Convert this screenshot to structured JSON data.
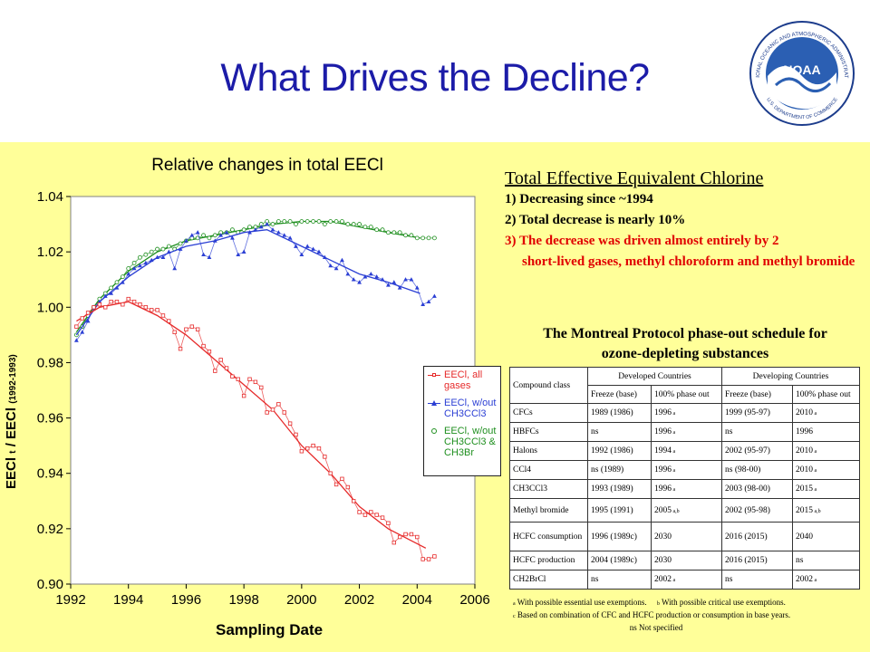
{
  "slide": {
    "title": "What Drives the Decline?",
    "colors": {
      "title": "#1c1ca8",
      "background": "#ffff99",
      "emphasis": "#e00000"
    }
  },
  "logo": {
    "icon": "noaa-logo-icon",
    "name": "NOAA",
    "ring_text": "NATIONAL OCEANIC AND ATMOSPHERIC ADMINISTRATION",
    "bottom_text": "U.S. DEPARTMENT OF COMMERCE"
  },
  "chart_data": {
    "type": "line",
    "title": "Relative changes in total EECl",
    "xlabel": "Sampling Date",
    "ylabel_main": "EECl",
    "ylabel_sub_t": "t",
    "ylabel_div": "/ EECl",
    "ylabel_sub_ref": "(1992-1993)",
    "xlim": [
      1992,
      2006
    ],
    "ylim": [
      0.9,
      1.04
    ],
    "x_ticks": [
      "1992",
      "1994",
      "1996",
      "1998",
      "2000",
      "2002",
      "2004",
      "2006"
    ],
    "y_ticks": [
      "0.90",
      "0.92",
      "0.94",
      "0.96",
      "0.98",
      "1.00",
      "1.02",
      "1.04"
    ],
    "legend_position": "right, inside",
    "series": [
      {
        "name": "EECl, all gases",
        "color": "#e62a2a",
        "marker": "square",
        "points": [
          [
            1992.2,
            0.993
          ],
          [
            1992.4,
            0.996
          ],
          [
            1992.6,
            0.998
          ],
          [
            1992.8,
            1.0
          ],
          [
            1993.0,
            1.001
          ],
          [
            1993.2,
            1.0
          ],
          [
            1993.4,
            1.002
          ],
          [
            1993.6,
            1.002
          ],
          [
            1993.8,
            1.001
          ],
          [
            1994.0,
            1.003
          ],
          [
            1994.2,
            1.002
          ],
          [
            1994.4,
            1.001
          ],
          [
            1994.6,
            1.0
          ],
          [
            1994.8,
            0.999
          ],
          [
            1995.0,
            0.999
          ],
          [
            1995.2,
            0.997
          ],
          [
            1995.4,
            0.995
          ],
          [
            1995.6,
            0.991
          ],
          [
            1995.8,
            0.985
          ],
          [
            1996.0,
            0.992
          ],
          [
            1996.2,
            0.993
          ],
          [
            1996.4,
            0.992
          ],
          [
            1996.6,
            0.986
          ],
          [
            1996.8,
            0.984
          ],
          [
            1997.0,
            0.977
          ],
          [
            1997.2,
            0.981
          ],
          [
            1997.4,
            0.978
          ],
          [
            1997.6,
            0.975
          ],
          [
            1997.8,
            0.974
          ],
          [
            1998.0,
            0.968
          ],
          [
            1998.2,
            0.974
          ],
          [
            1998.4,
            0.973
          ],
          [
            1998.6,
            0.971
          ],
          [
            1998.8,
            0.962
          ],
          [
            1999.0,
            0.963
          ],
          [
            1999.2,
            0.965
          ],
          [
            1999.4,
            0.962
          ],
          [
            1999.6,
            0.958
          ],
          [
            1999.8,
            0.954
          ],
          [
            2000.0,
            0.948
          ],
          [
            2000.2,
            0.949
          ],
          [
            2000.4,
            0.95
          ],
          [
            2000.6,
            0.949
          ],
          [
            2000.8,
            0.946
          ],
          [
            2001.0,
            0.94
          ],
          [
            2001.2,
            0.936
          ],
          [
            2001.4,
            0.938
          ],
          [
            2001.6,
            0.935
          ],
          [
            2001.8,
            0.93
          ],
          [
            2002.0,
            0.926
          ],
          [
            2002.2,
            0.925
          ],
          [
            2002.4,
            0.926
          ],
          [
            2002.6,
            0.925
          ],
          [
            2002.8,
            0.924
          ],
          [
            2003.0,
            0.922
          ],
          [
            2003.2,
            0.915
          ],
          [
            2003.4,
            0.917
          ],
          [
            2003.6,
            0.918
          ],
          [
            2003.8,
            0.918
          ],
          [
            2004.0,
            0.917
          ],
          [
            2004.2,
            0.909
          ],
          [
            2004.4,
            0.909
          ],
          [
            2004.6,
            0.91
          ]
        ],
        "trend": [
          [
            1992.2,
            0.995
          ],
          [
            1993.0,
            1.0
          ],
          [
            1994.0,
            1.002
          ],
          [
            1995.0,
            0.997
          ],
          [
            1996.0,
            0.99
          ],
          [
            1997.0,
            0.981
          ],
          [
            1998.0,
            0.972
          ],
          [
            1999.0,
            0.963
          ],
          [
            2000.0,
            0.95
          ],
          [
            2001.0,
            0.94
          ],
          [
            2002.0,
            0.928
          ],
          [
            2003.0,
            0.92
          ],
          [
            2004.3,
            0.913
          ]
        ]
      },
      {
        "name": "EECl, w/out CH3CCl3",
        "color": "#2b3fd4",
        "marker": "triangle",
        "points": [
          [
            1992.2,
            0.988
          ],
          [
            1992.4,
            0.991
          ],
          [
            1992.6,
            0.995
          ],
          [
            1992.8,
            1.0
          ],
          [
            1993.0,
            1.002
          ],
          [
            1993.2,
            1.004
          ],
          [
            1993.4,
            1.005
          ],
          [
            1993.6,
            1.007
          ],
          [
            1993.8,
            1.009
          ],
          [
            1994.0,
            1.012
          ],
          [
            1994.2,
            1.014
          ],
          [
            1994.4,
            1.015
          ],
          [
            1994.6,
            1.016
          ],
          [
            1994.8,
            1.017
          ],
          [
            1995.0,
            1.018
          ],
          [
            1995.2,
            1.018
          ],
          [
            1995.4,
            1.02
          ],
          [
            1995.6,
            1.014
          ],
          [
            1995.8,
            1.021
          ],
          [
            1996.0,
            1.024
          ],
          [
            1996.2,
            1.026
          ],
          [
            1996.4,
            1.027
          ],
          [
            1996.6,
            1.019
          ],
          [
            1996.8,
            1.018
          ],
          [
            1997.0,
            1.024
          ],
          [
            1997.2,
            1.026
          ],
          [
            1997.4,
            1.027
          ],
          [
            1997.6,
            1.025
          ],
          [
            1997.8,
            1.019
          ],
          [
            1998.0,
            1.02
          ],
          [
            1998.2,
            1.027
          ],
          [
            1998.4,
            1.028
          ],
          [
            1998.6,
            1.029
          ],
          [
            1998.8,
            1.03
          ],
          [
            1999.0,
            1.028
          ],
          [
            1999.2,
            1.027
          ],
          [
            1999.4,
            1.026
          ],
          [
            1999.6,
            1.025
          ],
          [
            1999.8,
            1.022
          ],
          [
            2000.0,
            1.019
          ],
          [
            2000.2,
            1.022
          ],
          [
            2000.4,
            1.021
          ],
          [
            2000.6,
            1.02
          ],
          [
            2000.8,
            1.018
          ],
          [
            2001.0,
            1.015
          ],
          [
            2001.2,
            1.014
          ],
          [
            2001.4,
            1.017
          ],
          [
            2001.6,
            1.012
          ],
          [
            2001.8,
            1.01
          ],
          [
            2002.0,
            1.009
          ],
          [
            2002.2,
            1.011
          ],
          [
            2002.4,
            1.012
          ],
          [
            2002.6,
            1.011
          ],
          [
            2002.8,
            1.01
          ],
          [
            2003.0,
            1.008
          ],
          [
            2003.2,
            1.009
          ],
          [
            2003.4,
            1.007
          ],
          [
            2003.6,
            1.01
          ],
          [
            2003.8,
            1.01
          ],
          [
            2004.0,
            1.007
          ],
          [
            2004.2,
            1.001
          ],
          [
            2004.4,
            1.002
          ],
          [
            2004.6,
            1.004
          ]
        ],
        "trend": [
          [
            1992.2,
            0.99
          ],
          [
            1993.0,
            1.002
          ],
          [
            1994.0,
            1.011
          ],
          [
            1995.0,
            1.018
          ],
          [
            1996.0,
            1.022
          ],
          [
            1997.0,
            1.024
          ],
          [
            1998.0,
            1.027
          ],
          [
            1998.8,
            1.028
          ],
          [
            2000.0,
            1.022
          ],
          [
            2001.0,
            1.017
          ],
          [
            2002.0,
            1.012
          ],
          [
            2003.0,
            1.009
          ],
          [
            2004.1,
            1.005
          ]
        ]
      },
      {
        "name": "EECl, w/out CH3CCl3 & CH3Br",
        "color": "#1f8f1f",
        "marker": "circle",
        "points": [
          [
            1992.2,
            0.99
          ],
          [
            1992.4,
            0.993
          ],
          [
            1992.6,
            0.997
          ],
          [
            1992.8,
            1.0
          ],
          [
            1993.0,
            1.003
          ],
          [
            1993.2,
            1.005
          ],
          [
            1993.4,
            1.007
          ],
          [
            1993.6,
            1.009
          ],
          [
            1993.8,
            1.011
          ],
          [
            1994.0,
            1.014
          ],
          [
            1994.2,
            1.016
          ],
          [
            1994.4,
            1.018
          ],
          [
            1994.6,
            1.019
          ],
          [
            1994.8,
            1.02
          ],
          [
            1995.0,
            1.021
          ],
          [
            1995.2,
            1.021
          ],
          [
            1995.4,
            1.022
          ],
          [
            1995.6,
            1.021
          ],
          [
            1995.8,
            1.023
          ],
          [
            1996.0,
            1.024
          ],
          [
            1996.2,
            1.025
          ],
          [
            1996.4,
            1.025
          ],
          [
            1996.6,
            1.026
          ],
          [
            1996.8,
            1.025
          ],
          [
            1997.0,
            1.026
          ],
          [
            1997.2,
            1.027
          ],
          [
            1997.4,
            1.027
          ],
          [
            1997.6,
            1.028
          ],
          [
            1997.8,
            1.027
          ],
          [
            1998.0,
            1.028
          ],
          [
            1998.2,
            1.029
          ],
          [
            1998.4,
            1.029
          ],
          [
            1998.6,
            1.03
          ],
          [
            1998.8,
            1.031
          ],
          [
            1999.0,
            1.03
          ],
          [
            1999.2,
            1.031
          ],
          [
            1999.4,
            1.031
          ],
          [
            1999.6,
            1.031
          ],
          [
            1999.8,
            1.03
          ],
          [
            2000.0,
            1.031
          ],
          [
            2000.2,
            1.031
          ],
          [
            2000.4,
            1.031
          ],
          [
            2000.6,
            1.031
          ],
          [
            2000.8,
            1.03
          ],
          [
            2001.0,
            1.031
          ],
          [
            2001.2,
            1.031
          ],
          [
            2001.4,
            1.031
          ],
          [
            2001.6,
            1.03
          ],
          [
            2001.8,
            1.03
          ],
          [
            2002.0,
            1.03
          ],
          [
            2002.2,
            1.029
          ],
          [
            2002.4,
            1.029
          ],
          [
            2002.6,
            1.028
          ],
          [
            2002.8,
            1.028
          ],
          [
            2003.0,
            1.027
          ],
          [
            2003.2,
            1.027
          ],
          [
            2003.4,
            1.027
          ],
          [
            2003.6,
            1.026
          ],
          [
            2003.8,
            1.026
          ],
          [
            2004.0,
            1.025
          ],
          [
            2004.2,
            1.025
          ],
          [
            2004.4,
            1.025
          ],
          [
            2004.6,
            1.025
          ]
        ],
        "trend": [
          [
            1992.2,
            0.991
          ],
          [
            1993.0,
            1.003
          ],
          [
            1994.0,
            1.013
          ],
          [
            1995.0,
            1.02
          ],
          [
            1996.0,
            1.024
          ],
          [
            1997.0,
            1.026
          ],
          [
            1998.0,
            1.028
          ],
          [
            1999.0,
            1.03
          ],
          [
            2000.0,
            1.031
          ],
          [
            2001.0,
            1.031
          ],
          [
            2002.0,
            1.029
          ],
          [
            2003.0,
            1.027
          ],
          [
            2004.1,
            1.025
          ]
        ]
      }
    ]
  },
  "summary": {
    "heading": "Total Effective Equivalent Chlorine",
    "points": [
      {
        "text": "1) Decreasing since ~1994",
        "cont": ""
      },
      {
        "text": "2) Total decrease is nearly 10%",
        "cont": ""
      },
      {
        "text": "3) The decrease was driven almost entirely by 2",
        "cont": "short-lived gases, methyl chloroform and methyl bromide"
      }
    ]
  },
  "table": {
    "title_line1": "The Montreal Protocol phase-out schedule for",
    "title_line2": "ozone-depleting substances",
    "compound_header": "Compound class",
    "group_headers": [
      "Developed Countries",
      "Developing Countries"
    ],
    "sub_headers": [
      "Freeze (base)",
      "100% phase out",
      "Freeze (base)",
      "100% phase out"
    ],
    "rows": [
      {
        "compound": "CFCs",
        "cells": [
          "1989 (1986)",
          "1996",
          "1999 (95-97)",
          "2010"
        ],
        "notes": [
          "",
          "a",
          "",
          "a"
        ]
      },
      {
        "compound": "HBFCs",
        "cells": [
          "ns",
          "1996",
          "ns",
          "1996"
        ],
        "notes": [
          "",
          "a",
          "",
          ""
        ]
      },
      {
        "compound": "Halons",
        "cells": [
          "1992 (1986)",
          "1994",
          "2002 (95-97)",
          "2010"
        ],
        "notes": [
          "",
          "a",
          "",
          "a"
        ]
      },
      {
        "compound": "CCl4",
        "cells": [
          "ns (1989)",
          "1996",
          "ns (98-00)",
          "2010"
        ],
        "notes": [
          "",
          "a",
          "",
          "a"
        ]
      },
      {
        "compound": "CH3CCl3",
        "cells": [
          "1993 (1989)",
          "1996",
          "2003 (98-00)",
          "2015"
        ],
        "notes": [
          "",
          "a",
          "",
          "a"
        ]
      },
      {
        "compound": "Methyl bromide",
        "cells": [
          "1995 (1991)",
          "2005",
          "2002 (95-98)",
          "2015"
        ],
        "notes": [
          "",
          "a,b",
          "",
          "a,b"
        ]
      },
      {
        "compound": "HCFC consumption",
        "cells": [
          "1996 (1989c)",
          "2030",
          "2016 (2015)",
          "2040"
        ],
        "notes": [
          "",
          "",
          "",
          ""
        ]
      },
      {
        "compound": "HCFC production",
        "cells": [
          "2004 (1989c)",
          "2030",
          "2016 (2015)",
          "ns"
        ],
        "notes": [
          "",
          "",
          "",
          ""
        ]
      },
      {
        "compound": "CH2BrCl",
        "cells": [
          "ns",
          "2002",
          "ns",
          "2002"
        ],
        "notes": [
          "",
          "a",
          "",
          "a"
        ]
      }
    ],
    "footnotes": {
      "a_mark": "a",
      "a": "With possible essential use exemptions.",
      "b_mark": "b",
      "b": "With possible critical use exemptions.",
      "c_mark": "c",
      "c": "Based on combination of CFC and HCFC production or consumption in base years.",
      "ns": "ns  Not specified"
    }
  }
}
